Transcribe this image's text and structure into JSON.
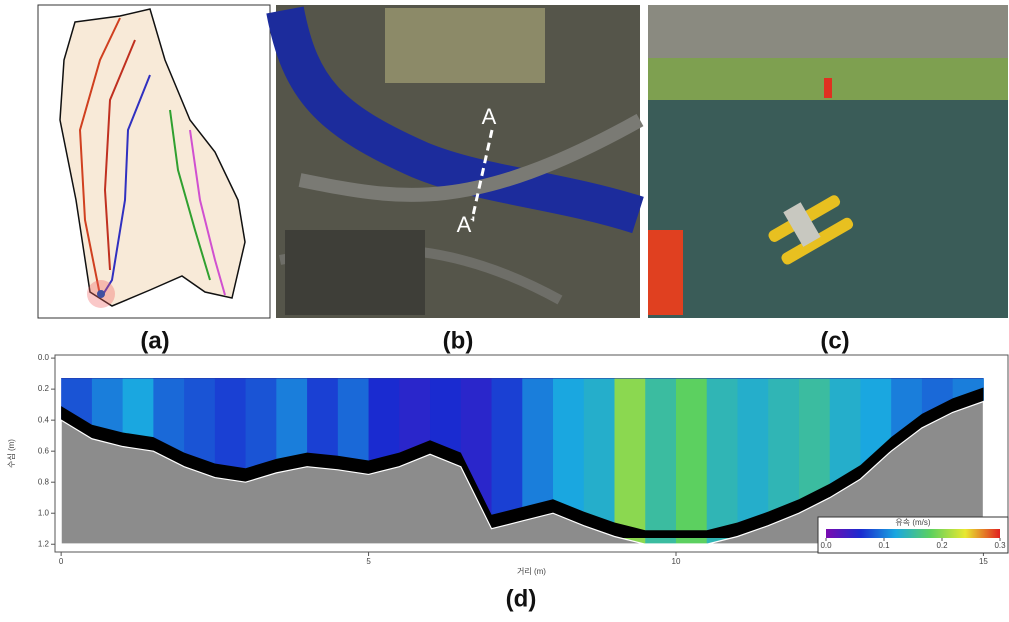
{
  "panels": {
    "a": {
      "label": "(a)"
    },
    "b": {
      "label": "(b)",
      "section_start": "A",
      "section_end": "A'"
    },
    "c": {
      "label": "(c)"
    },
    "d": {
      "label": "(d)"
    }
  },
  "chart_data": {
    "type": "velocity_section",
    "x_label": "거리 (m)",
    "y_label": "수심 (m)",
    "xlim": [
      -0.1,
      15.4
    ],
    "ylim": [
      -0.02,
      1.25
    ],
    "xticks": [
      0,
      5,
      10,
      15
    ],
    "yticks": [
      {
        "value": 0,
        "label": "0.0"
      },
      {
        "value": 0.2,
        "label": "0.2"
      },
      {
        "value": 0.4,
        "label": "0.4"
      },
      {
        "value": 0.6,
        "label": "0.6"
      },
      {
        "value": 0.8,
        "label": "0.8"
      },
      {
        "value": 1.0,
        "label": "1.0"
      },
      {
        "value": 1.2,
        "label": "1.2"
      }
    ],
    "measure_top": 0.13,
    "velocity_x": [
      0.25,
      0.75,
      1.25,
      1.75,
      2.25,
      2.75,
      3.25,
      3.75,
      4.25,
      4.75,
      5.25,
      5.75,
      6.25,
      6.75,
      7.25,
      7.75,
      8.25,
      8.75,
      9.25,
      9.75,
      10.25,
      10.75,
      11.25,
      11.75,
      12.25,
      12.75,
      13.25,
      13.75,
      14.25,
      14.75
    ],
    "velocity": [
      0.08,
      0.1,
      0.12,
      0.09,
      0.08,
      0.07,
      0.08,
      0.1,
      0.07,
      0.09,
      0.06,
      0.05,
      0.06,
      0.05,
      0.07,
      0.1,
      0.12,
      0.13,
      0.2,
      0.15,
      0.18,
      0.14,
      0.13,
      0.14,
      0.15,
      0.13,
      0.12,
      0.1,
      0.09,
      0.1
    ],
    "bed_x": [
      0,
      0.5,
      1,
      1.5,
      2,
      2.5,
      3,
      3.5,
      4,
      4.5,
      5,
      5.5,
      6,
      6.5,
      7,
      7.5,
      8,
      8.5,
      9,
      9.5,
      10,
      10.5,
      11,
      11.5,
      12,
      12.5,
      13,
      13.5,
      14,
      14.5,
      15
    ],
    "bed_depth": [
      0.4,
      0.52,
      0.57,
      0.6,
      0.7,
      0.77,
      0.8,
      0.74,
      0.7,
      0.72,
      0.75,
      0.7,
      0.62,
      0.7,
      1.1,
      1.05,
      1.0,
      1.08,
      1.15,
      1.2,
      1.2,
      1.2,
      1.15,
      1.08,
      1.0,
      0.9,
      0.78,
      0.6,
      0.45,
      0.35,
      0.28
    ],
    "colorbar": {
      "title": "유속 (m/s)",
      "ticks": [
        {
          "value": 0,
          "label": "0.0"
        },
        {
          "value": 0.1,
          "label": "0.1"
        },
        {
          "value": 0.2,
          "label": "0.2"
        },
        {
          "value": 0.3,
          "label": "0.3"
        }
      ],
      "colors": [
        "#7a0bb0",
        "#1a2bd0",
        "#1aa7e0",
        "#5cd060",
        "#e8e830",
        "#e02020"
      ]
    }
  }
}
